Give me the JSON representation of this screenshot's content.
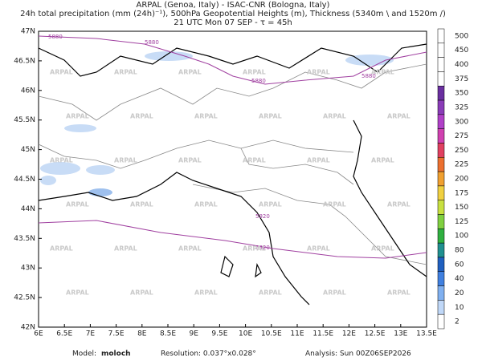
{
  "header": {
    "lines": [
      "ARPAL (Genoa, Italy)  -  ISAC-CNR (Bologna, Italy)",
      "24h total precipitation (mm (24h)⁻¹), 500hPa Geopotential Heights (m), Thickness (5340m \\ and 1520m /)",
      "21 UTC Mon 07 SEP  -  τ = 45h"
    ]
  },
  "map": {
    "x_labels": [
      "6E",
      "6.5E",
      "7E",
      "7.5E",
      "8E",
      "8.5E",
      "9E",
      "9.5E",
      "10E",
      "10.5E",
      "11E",
      "11.5E",
      "12E",
      "12.5E",
      "13E",
      "13.5E"
    ],
    "y_labels": [
      "47N",
      "46.5N",
      "46N",
      "45.5N",
      "45N",
      "44.5N",
      "44N",
      "43.5N",
      "43N",
      "42.5N",
      "42N"
    ],
    "contour_labels": [
      "5880",
      "5880",
      "5880",
      "5880",
      "5920",
      "5920"
    ],
    "watermark": "ARPAL"
  },
  "colorbar": {
    "levels": [
      {
        "label": "500",
        "color": "#ffffff"
      },
      {
        "label": "450",
        "color": "#ffffff"
      },
      {
        "label": "400",
        "color": "#ffffff"
      },
      {
        "label": "375",
        "color": "#ffffff"
      },
      {
        "label": "350",
        "color": "#6a2fa0"
      },
      {
        "label": "325",
        "color": "#8a3cb8"
      },
      {
        "label": "300",
        "color": "#b040c8"
      },
      {
        "label": "275",
        "color": "#d040b0"
      },
      {
        "label": "250",
        "color": "#e04060"
      },
      {
        "label": "225",
        "color": "#ec7030"
      },
      {
        "label": "200",
        "color": "#f0a030"
      },
      {
        "label": "175",
        "color": "#f0d040"
      },
      {
        "label": "150",
        "color": "#c8e040"
      },
      {
        "label": "125",
        "color": "#80d040"
      },
      {
        "label": "100",
        "color": "#30b040"
      },
      {
        "label": "80",
        "color": "#209090"
      },
      {
        "label": "60",
        "color": "#2060c0"
      },
      {
        "label": "40",
        "color": "#4080e0"
      },
      {
        "label": "20",
        "color": "#80b0f0"
      },
      {
        "label": "10",
        "color": "#c0d8f8"
      },
      {
        "label": "2",
        "color": "#ffffff"
      }
    ]
  },
  "footer": {
    "model_label": "Model:",
    "model": "moloch",
    "resolution": "Resolution: 0.037°x0.028°",
    "analysis": "Analysis: Sun 00Z06SEP2026"
  }
}
